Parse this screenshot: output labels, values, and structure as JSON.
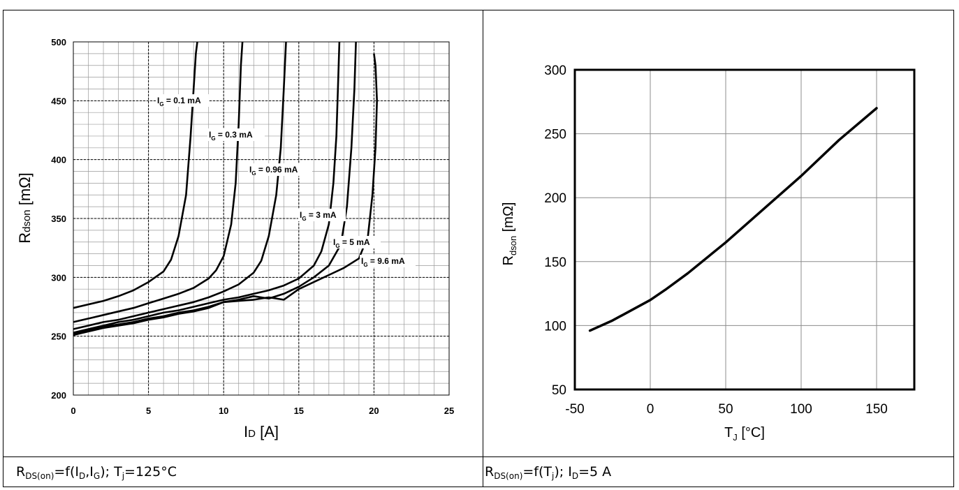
{
  "chart_data": [
    {
      "type": "line",
      "xlabel": "ID [A]",
      "ylabel": "Rdson [mΩ]",
      "xlim": [
        0,
        25
      ],
      "ylim": [
        200,
        500
      ],
      "xticks": [
        "0",
        "5",
        "10",
        "15",
        "20",
        "25"
      ],
      "yticks": [
        "200",
        "250",
        "300",
        "350",
        "400",
        "450",
        "500"
      ],
      "grid": true,
      "series": [
        {
          "name": "IG = 0.1 mA",
          "x": [
            0,
            1,
            2,
            3,
            4,
            5,
            6,
            6.5,
            7,
            7.5,
            7.8,
            8.0,
            8.15,
            8.25
          ],
          "y": [
            274,
            277,
            280,
            284,
            289,
            296,
            305,
            315,
            335,
            370,
            420,
            460,
            490,
            500
          ]
        },
        {
          "name": "IG = 0.3 mA",
          "x": [
            0,
            1,
            2,
            3,
            4,
            5,
            6,
            7,
            8,
            9,
            9.5,
            10,
            10.5,
            10.8,
            11.0,
            11.15,
            11.25
          ],
          "y": [
            262,
            265,
            268,
            271,
            274,
            278,
            282,
            286,
            291,
            299,
            306,
            318,
            345,
            380,
            430,
            480,
            500
          ]
        },
        {
          "name": "IG = 0.96 mA",
          "x": [
            0,
            1,
            2,
            3,
            4,
            5,
            6,
            7,
            8,
            9,
            10,
            11,
            12,
            12.5,
            13,
            13.5,
            13.8,
            14.0,
            14.15
          ],
          "y": [
            256,
            259,
            262,
            264,
            267,
            270,
            273,
            276,
            279,
            283,
            288,
            294,
            304,
            314,
            335,
            370,
            410,
            460,
            500
          ]
        },
        {
          "name": "IG = 3 mA",
          "x": [
            0,
            1,
            2,
            3,
            4,
            5,
            6,
            7,
            8,
            9,
            10,
            11,
            12,
            13,
            14,
            15,
            16,
            16.5,
            17,
            17.3,
            17.5,
            17.6,
            17.7
          ],
          "y": [
            253,
            256,
            259,
            262,
            264,
            267,
            270,
            272,
            275,
            278,
            281,
            283,
            286,
            289,
            293,
            299,
            310,
            322,
            345,
            380,
            420,
            460,
            500
          ]
        },
        {
          "name": "IG = 5 mA",
          "x": [
            0,
            1,
            2,
            3,
            4,
            5,
            6,
            7,
            8,
            9,
            10,
            11,
            12,
            13,
            14,
            15,
            16,
            17,
            17.8,
            18.2,
            18.5,
            18.7,
            18.8
          ],
          "y": [
            252,
            255,
            258,
            260,
            262,
            265,
            267,
            270,
            272,
            275,
            279,
            281,
            284,
            282,
            286,
            292,
            300,
            310,
            328,
            360,
            410,
            460,
            500
          ]
        },
        {
          "name": "IG = 9.6 mA",
          "x": [
            0,
            1,
            2,
            3,
            4,
            5,
            6,
            7,
            8,
            9,
            10,
            11,
            12,
            13,
            14,
            15,
            16,
            17,
            18,
            19,
            19.6,
            19.9,
            20.1,
            20.2,
            20.1,
            20.0
          ],
          "y": [
            251,
            254,
            257,
            259,
            261,
            264,
            266,
            269,
            271,
            274,
            279,
            280,
            281,
            283,
            281,
            290,
            296,
            302,
            308,
            316,
            335,
            370,
            410,
            450,
            480,
            490
          ]
        }
      ],
      "annotations": [
        {
          "sym": "I",
          "sub": "G",
          "rest": " = 0.1 mA"
        },
        {
          "sym": "I",
          "sub": "G",
          "rest": " = 0.3 mA"
        },
        {
          "sym": "I",
          "sub": "G",
          "rest": " = 0.96 mA"
        },
        {
          "sym": "I",
          "sub": "G",
          "rest": " = 3 mA"
        },
        {
          "sym": "I",
          "sub": "G",
          "rest": " = 5 mA"
        },
        {
          "sym": "I",
          "sub": "G",
          "rest": " = 9.6 mA"
        }
      ]
    },
    {
      "type": "line",
      "xlabel": "TJ [°C]",
      "ylabel": "Rdson [mΩ]",
      "xlim": [
        -50,
        175
      ],
      "ylim": [
        50,
        300
      ],
      "xticks": [
        "-50",
        "0",
        "50",
        "100",
        "150"
      ],
      "yticks": [
        "50",
        "100",
        "150",
        "200",
        "250",
        "300"
      ],
      "grid": true,
      "series": [
        {
          "x": [
            -40,
            -25,
            0,
            10,
            25,
            50,
            75,
            100,
            125,
            150
          ],
          "y": [
            96,
            104,
            120,
            128,
            141,
            165,
            191,
            217,
            245,
            270
          ]
        }
      ]
    }
  ],
  "captions": {
    "left": {
      "a": "R",
      "b": "DS(on)",
      "c": "=f(I",
      "d": "D",
      "e": ",I",
      "f": "G",
      "g": "); T",
      "h": "j",
      "i": "=125°C"
    },
    "right": {
      "a": "R",
      "b": "DS(on)",
      "c": "=f(T",
      "d": "j",
      "e": "); I",
      "f": "D",
      "g": "=5 A"
    }
  }
}
